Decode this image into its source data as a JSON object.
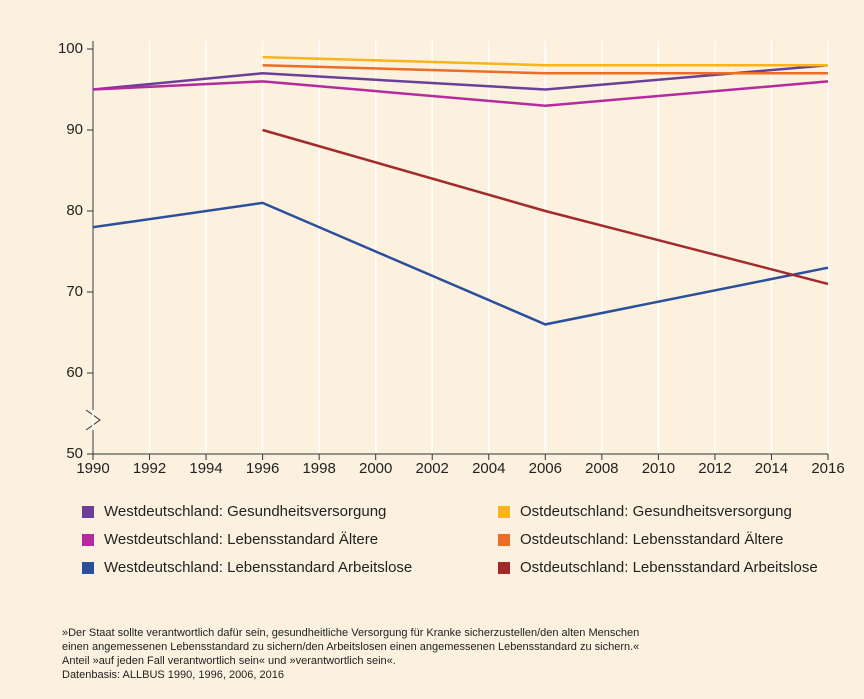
{
  "chart_data": {
    "type": "line",
    "x": [
      1990,
      1996,
      2006,
      2016
    ],
    "xlim": [
      1990,
      2016
    ],
    "xticks": [
      1990,
      1992,
      1994,
      1996,
      1998,
      2000,
      2002,
      2004,
      2006,
      2008,
      2010,
      2012,
      2014,
      2016
    ],
    "ylim": [
      50,
      100
    ],
    "yticks": [
      50,
      60,
      70,
      80,
      90,
      100
    ],
    "grid": true,
    "series": [
      {
        "name": "Westdeutschland: Gesundheitsversorgung",
        "color": "#6b3f98",
        "values": [
          95,
          97,
          95,
          98
        ]
      },
      {
        "name": "Westdeutschland: Lebensstandard Ältere",
        "color": "#b52a9c",
        "values": [
          95,
          96,
          93,
          96
        ]
      },
      {
        "name": "Westdeutschland: Lebensstandard Arbeitslose",
        "color": "#2b4f9c",
        "values": [
          78,
          81,
          66,
          73
        ]
      },
      {
        "name": "Ostdeutschland: Gesundheitsversorgung",
        "color": "#f8b418",
        "values": [
          null,
          99,
          98,
          98
        ]
      },
      {
        "name": "Ostdeutschland: Lebensstandard Ältere",
        "color": "#ec6d25",
        "values": [
          null,
          98,
          97,
          97
        ]
      },
      {
        "name": "Ostdeutschland: Lebensstandard Arbeitslose",
        "color": "#a32a2c",
        "values": [
          null,
          90,
          80,
          71
        ]
      }
    ],
    "notes": [
      "»Der Staat sollte verantwortlich dafür sein, gesundheitliche Versorgung für Kranke sicherzustellen/den alten Menschen",
      "einen angemessenen Lebensstandard zu sichern/den Arbeitslosen einen angemessenen Lebensstandard zu sichern.«",
      "Anteil »auf jeden Fall verantwortlich sein« und »verantwortlich sein«.",
      "Datenbasis: ALLBUS 1990, 1996, 2006, 2016"
    ]
  }
}
